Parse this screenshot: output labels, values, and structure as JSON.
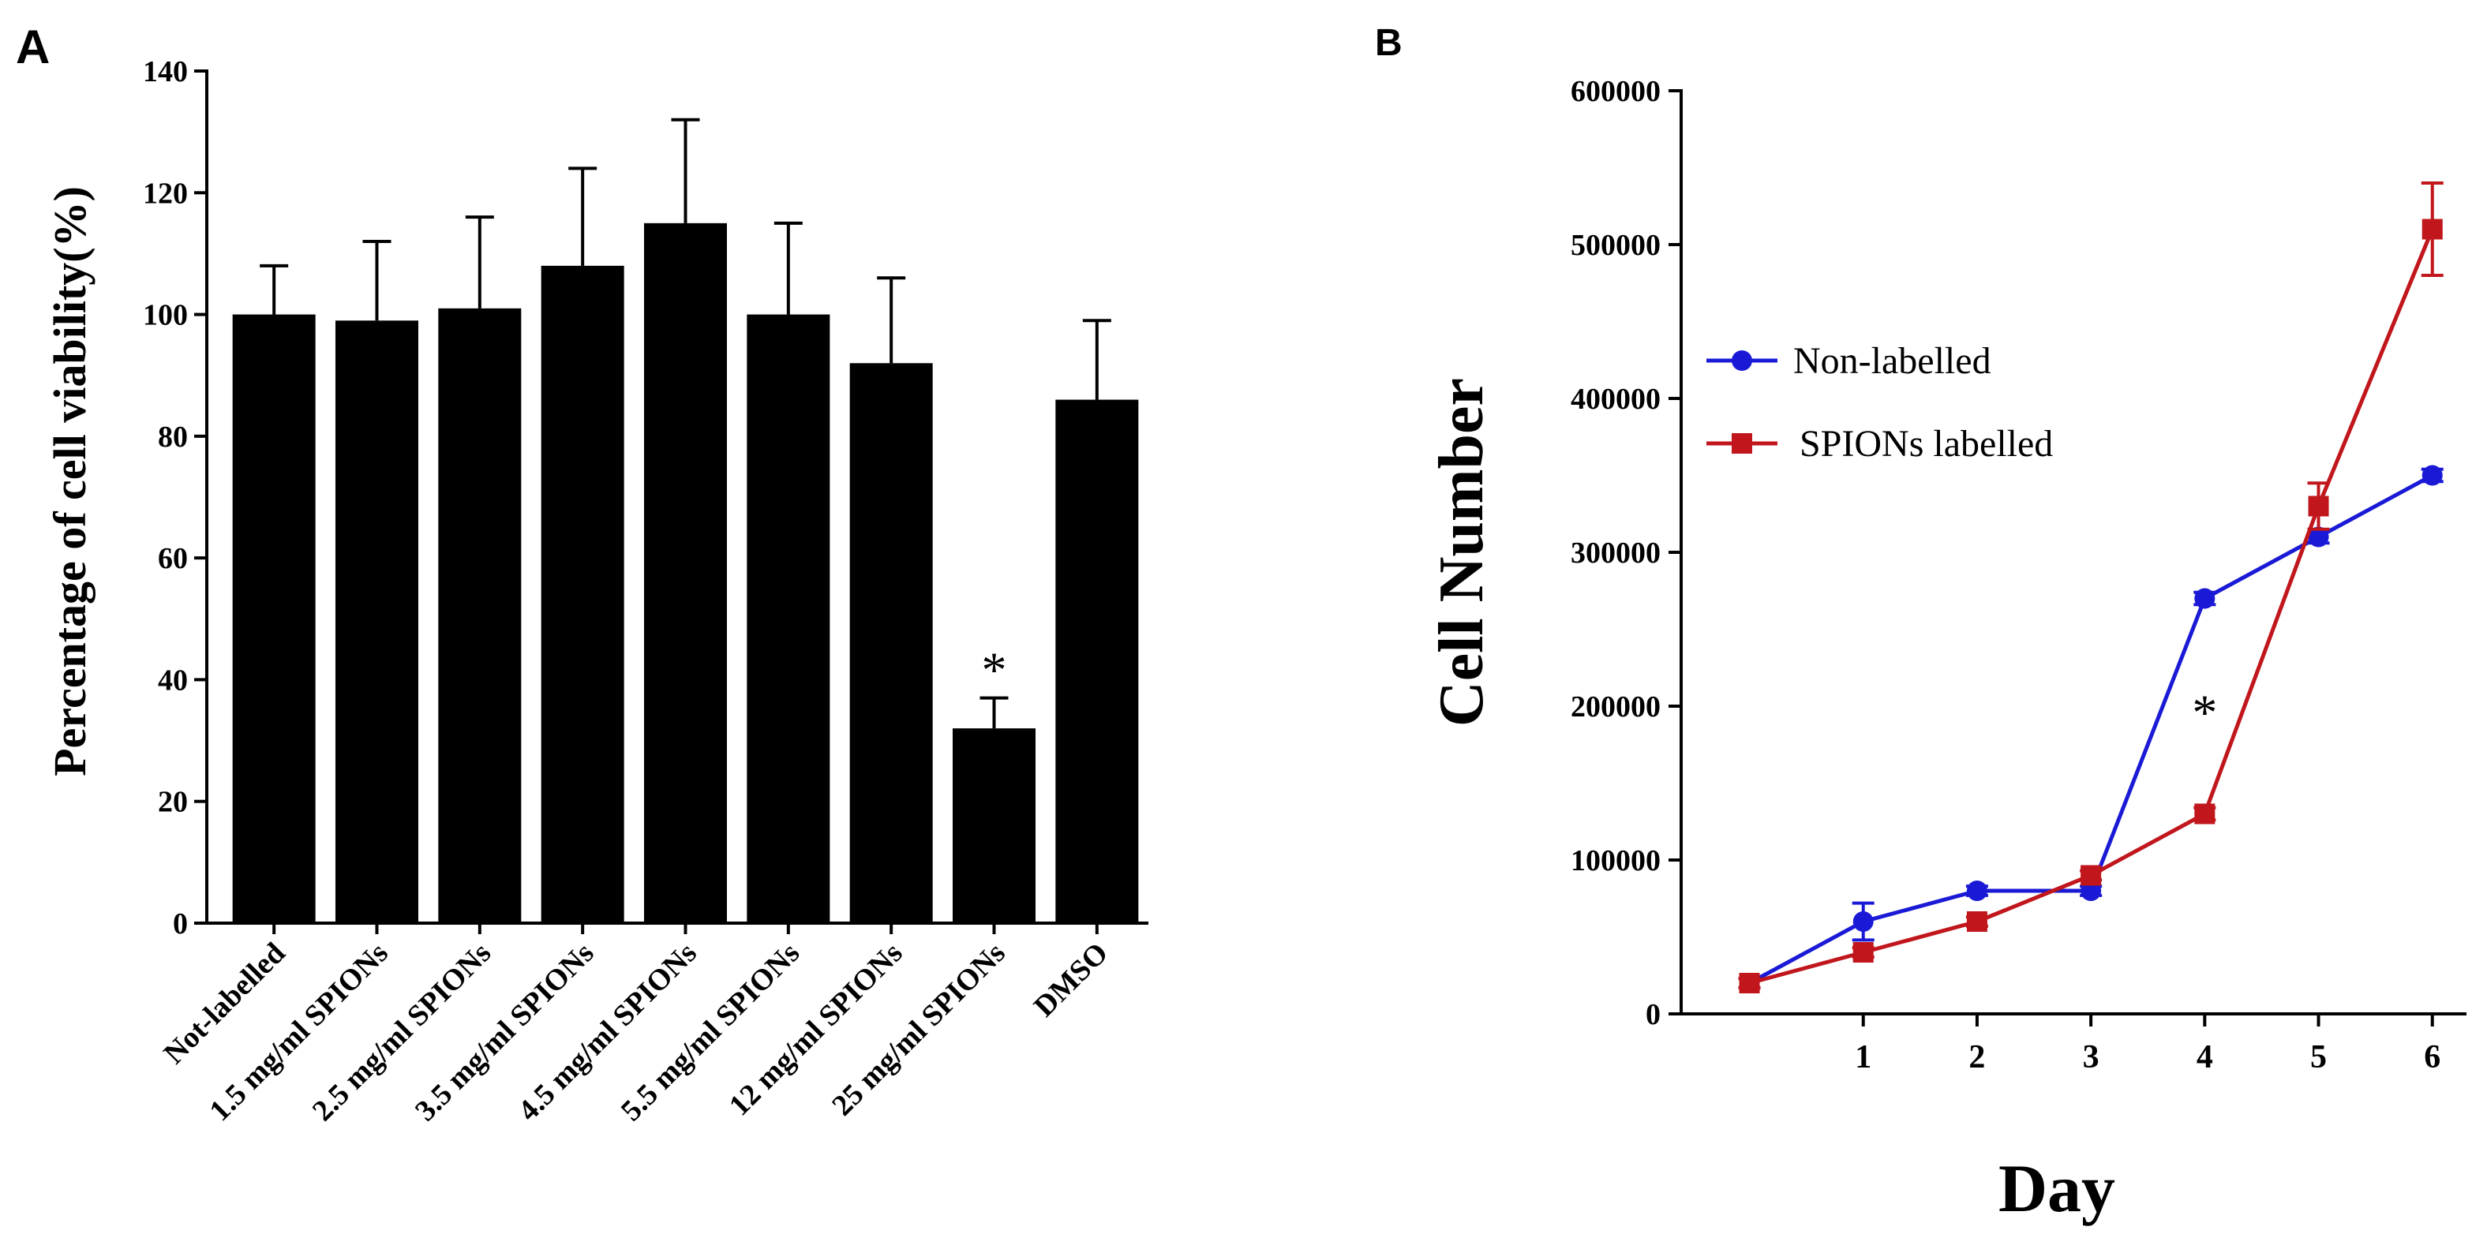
{
  "colors": {
    "bar": "#000000",
    "axis": "#000000",
    "series_blue": "#1a1ad6",
    "series_red": "#c0161c"
  },
  "chart_data": [
    {
      "panel": "A",
      "type": "bar",
      "title": "",
      "xlabel": "",
      "ylabel": "Percentage of cell viability(%)",
      "ylim": [
        0,
        140
      ],
      "yticks": [
        0,
        20,
        40,
        60,
        80,
        100,
        120,
        140
      ],
      "categories": [
        "Not-labelled",
        "1.5 mg/ml SPIONs",
        "2.5 mg/ml SPIONs",
        "3.5 mg/ml SPIONs",
        "4.5 mg/ml SPIONs",
        "5.5 mg/ml SPIONs",
        "12 mg/ml SPIONs",
        "25 mg/ml SPIONs",
        "DMSO"
      ],
      "values": [
        100,
        99,
        101,
        108,
        115,
        100,
        92,
        32,
        86
      ],
      "errors": [
        8,
        13,
        15,
        16,
        17,
        15,
        14,
        5,
        13
      ],
      "annotations": [
        {
          "category_index": 7,
          "text": "*"
        }
      ]
    },
    {
      "panel": "B",
      "type": "line",
      "title": "",
      "xlabel": "Day",
      "ylabel": "Cell Number",
      "xlim": [
        -0.6,
        6.3
      ],
      "ylim": [
        0,
        600000
      ],
      "xticks": [
        1,
        2,
        3,
        4,
        5,
        6
      ],
      "yticks": [
        0,
        100000,
        200000,
        300000,
        400000,
        500000,
        600000
      ],
      "series": [
        {
          "name": "Non-labelled",
          "marker": "circle",
          "x": [
            0,
            1,
            2,
            3,
            4,
            5,
            6
          ],
          "values": [
            20000,
            60000,
            80000,
            80000,
            270000,
            310000,
            350000
          ],
          "errors": [
            3000,
            12000,
            3000,
            3000,
            4000,
            4000,
            4000
          ]
        },
        {
          "name": "SPIONs labelled",
          "marker": "square",
          "x": [
            0,
            1,
            2,
            3,
            4,
            5,
            6
          ],
          "values": [
            20000,
            40000,
            60000,
            90000,
            130000,
            330000,
            510000
          ],
          "errors": [
            3000,
            3000,
            3000,
            3000,
            4000,
            15000,
            30000
          ]
        }
      ],
      "annotations": [
        {
          "x": 4,
          "text": "*"
        }
      ]
    }
  ]
}
